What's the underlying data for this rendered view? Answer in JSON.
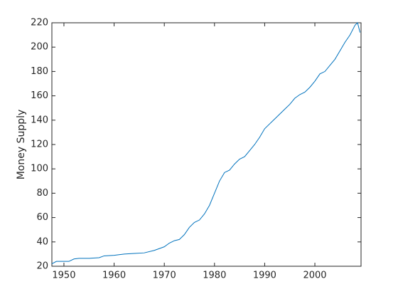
{
  "chart_data": {
    "type": "line",
    "ylabel": "Money Supply",
    "x": [
      1947.6,
      1948.5,
      1950,
      1951,
      1952,
      1953,
      1955,
      1957,
      1958,
      1960,
      1962,
      1964,
      1966,
      1968,
      1970,
      1971,
      1972,
      1973,
      1974,
      1975,
      1976,
      1977,
      1978,
      1979,
      1980,
      1981,
      1982,
      1983,
      1984,
      1985,
      1986,
      1987,
      1988,
      1989,
      1990,
      1991,
      1992,
      1993,
      1994,
      1995,
      1996,
      1997,
      1998,
      1999,
      2000,
      2001,
      2002,
      2003,
      2004,
      2005,
      2006,
      2007,
      2008,
      2008.5,
      2009
    ],
    "series": [
      {
        "color": "#0072bd",
        "values": [
          22,
          24,
          24,
          24,
          26,
          26.5,
          26.5,
          27,
          28.5,
          29,
          30,
          30.5,
          31,
          33,
          36,
          39,
          41,
          42,
          46,
          52,
          56,
          58,
          63,
          70,
          80,
          90,
          97,
          99,
          104,
          108,
          110,
          115,
          120,
          126,
          133,
          137,
          141,
          145,
          149,
          153,
          158,
          161,
          163,
          167,
          172,
          178,
          180,
          185,
          190,
          197,
          204,
          210,
          218,
          220,
          212
        ]
      }
    ],
    "xlim": [
      1947.6,
      2009.2
    ],
    "xticks": [
      1950,
      1960,
      1970,
      1980,
      1990,
      2000
    ],
    "ylim": [
      20,
      220
    ],
    "yticks": [
      20,
      40,
      60,
      80,
      100,
      120,
      140,
      160,
      180,
      200,
      220
    ],
    "grid": false
  }
}
